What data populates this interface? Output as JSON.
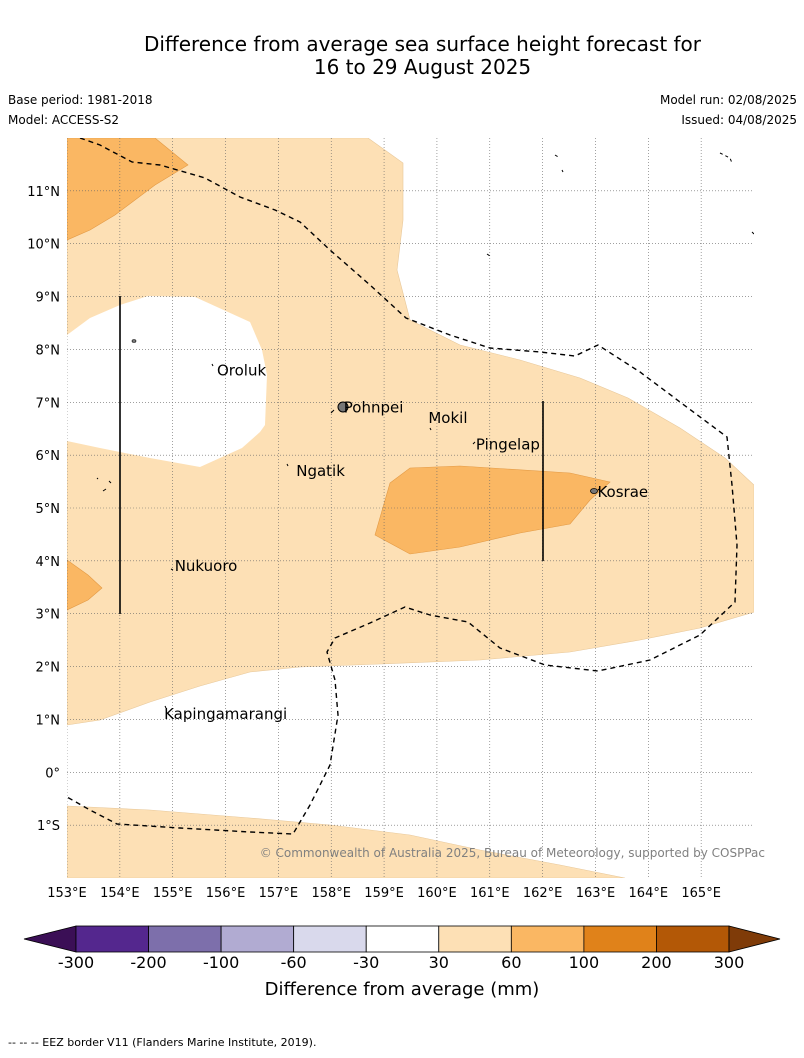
{
  "title": {
    "line1": "Difference from average sea surface height forecast for",
    "line2": "16 to 29 August 2025"
  },
  "meta": {
    "base_period": "Base period: 1981-2018",
    "model": "Model: ACCESS-S2",
    "model_run": "Model run: 02/08/2025",
    "issued": "Issued: 04/08/2025"
  },
  "map": {
    "lon_range": [
      153,
      166
    ],
    "lat_range": [
      -2,
      12
    ],
    "lon_labels": [
      "153°E",
      "154°E",
      "155°E",
      "156°E",
      "157°E",
      "158°E",
      "159°E",
      "160°E",
      "161°E",
      "162°E",
      "163°E",
      "164°E",
      "165°E"
    ],
    "lat_labels": [
      "11°N",
      "10°N",
      "9°N",
      "8°N",
      "7°N",
      "6°N",
      "5°N",
      "4°N",
      "3°N",
      "2°N",
      "1°N",
      "0°",
      "1°S"
    ],
    "places": [
      {
        "name": "Oroluk",
        "lon": 155.8,
        "lat": 7.6
      },
      {
        "name": "Pohnpei",
        "lon": 158.2,
        "lat": 6.9
      },
      {
        "name": "Mokil",
        "lon": 159.8,
        "lat": 6.7
      },
      {
        "name": "Pingelap",
        "lon": 160.7,
        "lat": 6.2
      },
      {
        "name": "Ngatik",
        "lon": 157.3,
        "lat": 5.7
      },
      {
        "name": "Kosrae",
        "lon": 163.0,
        "lat": 5.3
      },
      {
        "name": "Nukuoro",
        "lon": 155.0,
        "lat": 3.9
      },
      {
        "name": "Kapingamarangi",
        "lon": 154.8,
        "lat": 1.1
      }
    ],
    "credit": "© Commonwealth of Australia 2025, Bureau of Meteorology, supported by COSPPac",
    "fill_colors": {
      "30_60": "#fde0b5",
      "60_100": "#fab763"
    }
  },
  "colorbar": {
    "ticks": [
      "-300",
      "-200",
      "-100",
      "-60",
      "-30",
      "30",
      "60",
      "100",
      "200",
      "300"
    ],
    "colors": [
      "#3b0f56",
      "#54278e",
      "#7d6fab",
      "#b1abd2",
      "#d9d9ec",
      "#ffffff",
      "#fde0b5",
      "#fab763",
      "#e0821a",
      "#b35806",
      "#7f3b08"
    ],
    "title": "Difference from average (mm)"
  },
  "footer": "-- -- -- EEZ border V11 (Flanders Marine Institute, 2019)."
}
